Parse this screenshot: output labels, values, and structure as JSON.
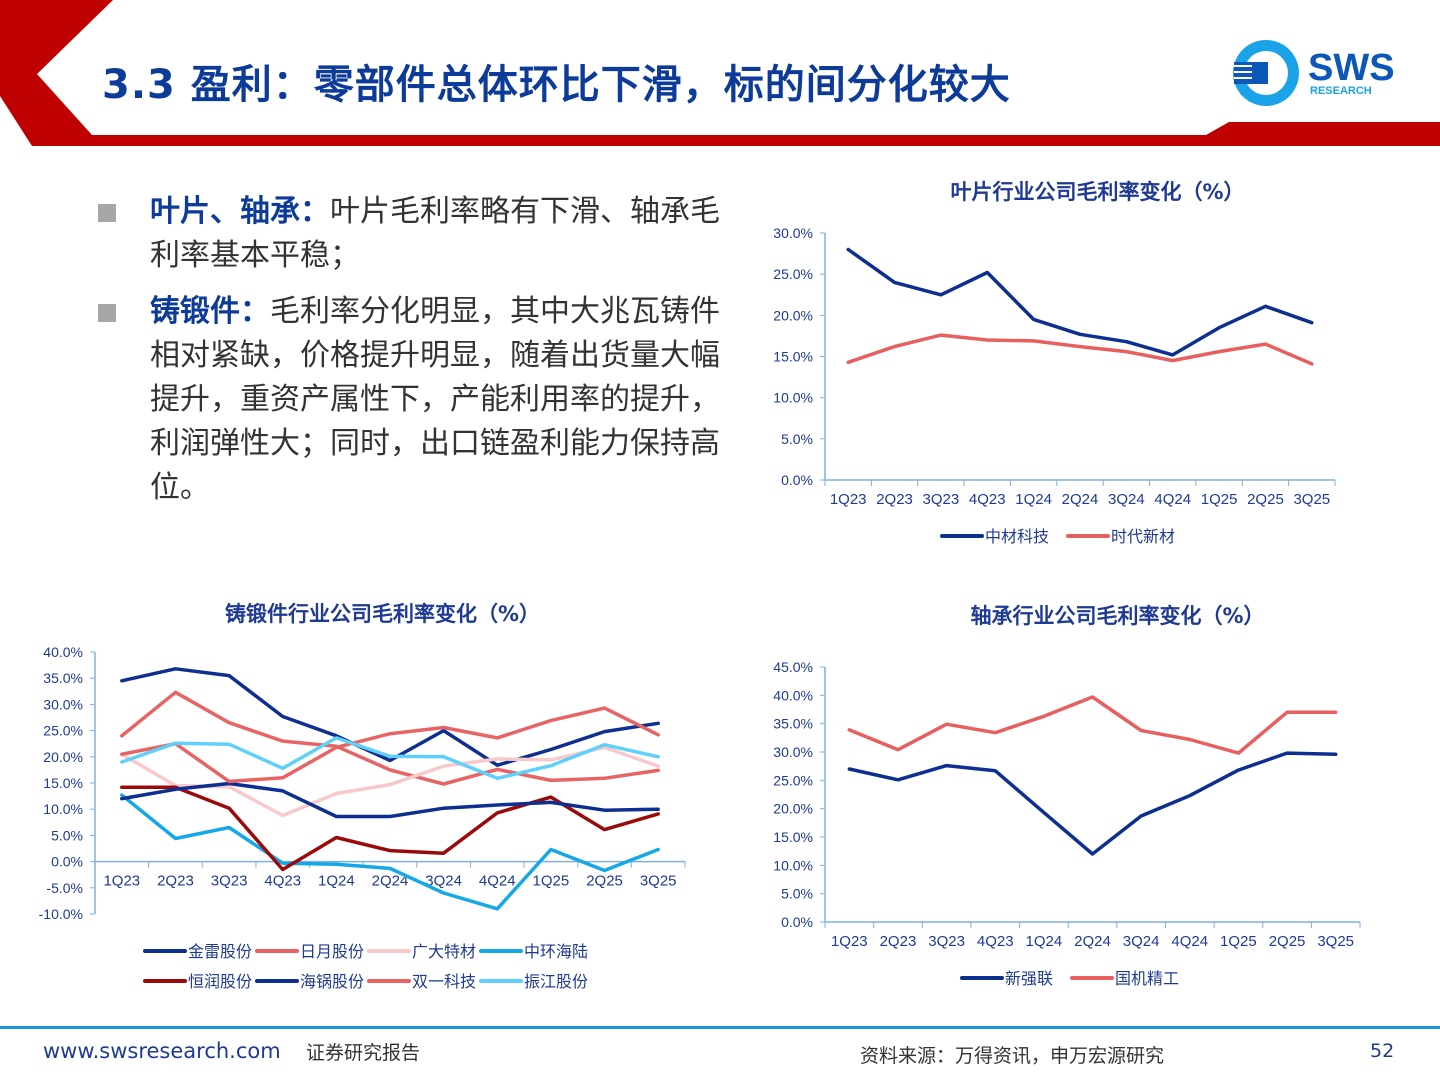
{
  "header": {
    "title": "3.3 盈利：零部件总体环比下滑，标的间分化较大",
    "logo_text": "SWS",
    "logo_sub": "RESEARCH",
    "colors": {
      "red": "#c00000",
      "blue": "#0d3b9a",
      "logo_cyan": "#1aa3e8"
    }
  },
  "bullets": [
    {
      "head": "叶片、轴承：",
      "text": "叶片毛利率略有下滑、轴承毛利率基本平稳；"
    },
    {
      "head": "铸锻件：",
      "text": "毛利率分化明显，其中大兆瓦铸件相对紧缺，价格提升明显，随着出货量大幅提升，重资产属性下，产能利用率的提升，利润弹性大；同时，出口链盈利能力保持高位。"
    }
  ],
  "chart_data": [
    {
      "id": "blade",
      "type": "line",
      "title": "叶片行业公司毛利率变化（%）",
      "categories": [
        "1Q23",
        "2Q23",
        "3Q23",
        "4Q23",
        "1Q24",
        "2Q24",
        "3Q24",
        "4Q24",
        "1Q25",
        "2Q25",
        "3Q25"
      ],
      "ylim": [
        0,
        30
      ],
      "yticks": [
        0,
        5,
        10,
        15,
        20,
        25,
        30
      ],
      "ytick_labels": [
        "0.0%",
        "5.0%",
        "10.0%",
        "15.0%",
        "20.0%",
        "25.0%",
        "30.0%"
      ],
      "grid": false,
      "legend": "bottom",
      "series": [
        {
          "name": "中材科技",
          "color": "#0d2f8f",
          "values": [
            28.0,
            24.0,
            22.5,
            25.2,
            19.5,
            17.7,
            16.8,
            15.2,
            18.5,
            21.1,
            19.1
          ]
        },
        {
          "name": "时代新材",
          "color": "#e85f5f",
          "values": [
            14.3,
            16.2,
            17.6,
            17.0,
            16.9,
            16.2,
            15.6,
            14.5,
            15.6,
            16.5,
            14.1
          ]
        }
      ]
    },
    {
      "id": "forging",
      "type": "line",
      "title": "铸锻件行业公司毛利率变化（%）",
      "categories": [
        "1Q23",
        "2Q23",
        "3Q23",
        "4Q23",
        "1Q24",
        "2Q24",
        "3Q24",
        "4Q24",
        "1Q25",
        "2Q25",
        "3Q25"
      ],
      "ylim": [
        -10,
        40
      ],
      "yticks": [
        -10,
        -5,
        0,
        5,
        10,
        15,
        20,
        25,
        30,
        35,
        40
      ],
      "ytick_labels": [
        "-10.0%",
        "-5.0%",
        "0.0%",
        "5.0%",
        "10.0%",
        "15.0%",
        "20.0%",
        "25.0%",
        "30.0%",
        "35.0%",
        "40.0%"
      ],
      "grid": false,
      "legend": "bottom",
      "series": [
        {
          "name": "金雷股份",
          "color": "#0d2f8f",
          "values": [
            34.5,
            36.8,
            35.5,
            27.7,
            24.0,
            19.3,
            25.0,
            18.4,
            21.4,
            24.8,
            26.4
          ]
        },
        {
          "name": "日月股份",
          "color": "#e86464",
          "values": [
            24.0,
            32.3,
            26.5,
            23.0,
            22.0,
            17.5,
            14.8,
            17.6,
            15.5,
            15.9,
            17.4
          ]
        },
        {
          "name": "广大特材",
          "color": "#f7c9cb",
          "values": [
            20.5,
            14.5,
            14.3,
            8.8,
            13.0,
            14.7,
            18.2,
            19.6,
            19.4,
            21.8,
            18.2
          ]
        },
        {
          "name": "中环海陆",
          "color": "#14a8e6",
          "values": [
            12.7,
            4.4,
            6.5,
            -0.3,
            -0.5,
            -1.3,
            -6.0,
            -9.0,
            2.3,
            -1.7,
            2.3
          ]
        },
        {
          "name": "恒润股份",
          "color": "#9b0a0a",
          "values": [
            14.2,
            14.2,
            10.2,
            -1.5,
            4.6,
            2.1,
            1.6,
            9.3,
            12.3,
            6.1,
            9.1
          ]
        },
        {
          "name": "海锅股份",
          "color": "#0d2f8f",
          "values": [
            12.0,
            13.8,
            14.9,
            13.5,
            8.6,
            8.6,
            10.2,
            10.8,
            11.3,
            9.8,
            10.0
          ]
        },
        {
          "name": "双一科技",
          "color": "#e86464",
          "values": [
            20.5,
            22.5,
            15.3,
            16.0,
            21.8,
            24.4,
            25.6,
            23.6,
            26.9,
            29.3,
            24.2
          ]
        },
        {
          "name": "振江股份",
          "color": "#5fd0fb",
          "values": [
            19.0,
            22.6,
            22.4,
            17.8,
            23.6,
            20.1,
            20.0,
            15.9,
            18.3,
            22.3,
            20.0
          ]
        }
      ]
    },
    {
      "id": "bearing",
      "type": "line",
      "title": "轴承行业公司毛利率变化（%）",
      "categories": [
        "1Q23",
        "2Q23",
        "3Q23",
        "4Q23",
        "1Q24",
        "2Q24",
        "3Q24",
        "4Q24",
        "1Q25",
        "2Q25",
        "3Q25"
      ],
      "ylim": [
        0,
        45
      ],
      "yticks": [
        0,
        5,
        10,
        15,
        20,
        25,
        30,
        35,
        40,
        45
      ],
      "ytick_labels": [
        "0.0%",
        "5.0%",
        "10.0%",
        "15.0%",
        "20.0%",
        "25.0%",
        "30.0%",
        "35.0%",
        "40.0%",
        "45.0%"
      ],
      "grid": false,
      "legend": "bottom",
      "series": [
        {
          "name": "新强联",
          "color": "#0d2f8f",
          "values": [
            27.0,
            25.1,
            27.6,
            26.7,
            19.3,
            12.0,
            18.7,
            22.3,
            26.8,
            29.8,
            29.6
          ]
        },
        {
          "name": "国机精工",
          "color": "#e85f5f",
          "values": [
            33.9,
            30.4,
            34.9,
            33.4,
            36.3,
            39.7,
            33.8,
            32.2,
            29.8,
            37.0,
            37.0
          ]
        }
      ]
    }
  ],
  "footer": {
    "website": "www.swsresearch.com",
    "label": "证券研究报告",
    "source": "资料来源：万得资讯，申万宏源研究",
    "page": "52",
    "line_color": "#1a9ad6"
  }
}
